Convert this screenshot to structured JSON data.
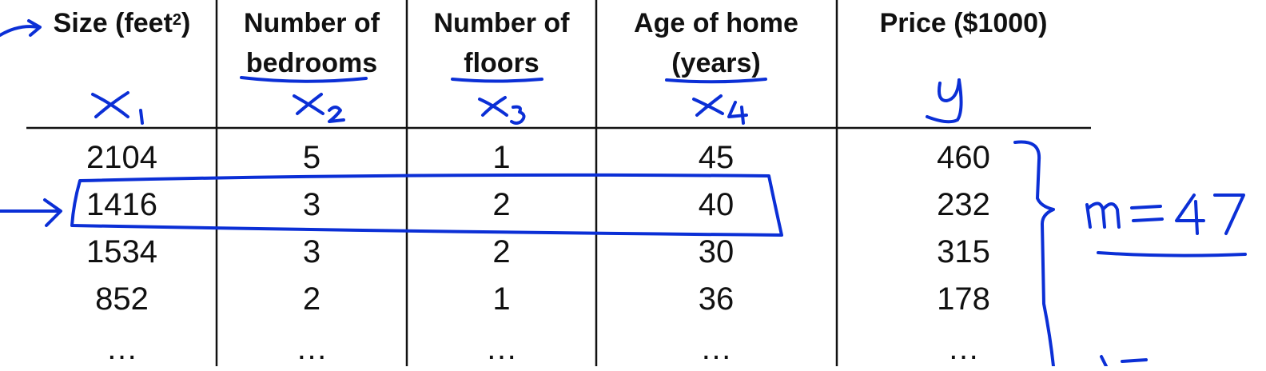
{
  "table": {
    "columns": [
      {
        "header_line1": "Size (feet",
        "header_sup": "2",
        "header_line1_tail": ")",
        "header_line2": ""
      },
      {
        "header_line1": "Number of",
        "header_line2": "bedrooms"
      },
      {
        "header_line1": "Number of",
        "header_line2": "floors"
      },
      {
        "header_line1": "Age of home",
        "header_line2": "(years)"
      },
      {
        "header_line1": "Price ($1000)",
        "header_line2": ""
      }
    ],
    "rows": [
      [
        "2104",
        "5",
        "1",
        "45",
        "460"
      ],
      [
        "1416",
        "3",
        "2",
        "40",
        "232"
      ],
      [
        "1534",
        "3",
        "2",
        "30",
        "315"
      ],
      [
        "852",
        "2",
        "1",
        "36",
        "178"
      ],
      [
        "…",
        "…",
        "…",
        "…",
        "…"
      ]
    ]
  },
  "annotations": {
    "feature_labels": [
      "x1",
      "x2",
      "x3",
      "x4",
      "y"
    ],
    "m_label": "m = 47",
    "ink_color": "#0b2fd6"
  }
}
